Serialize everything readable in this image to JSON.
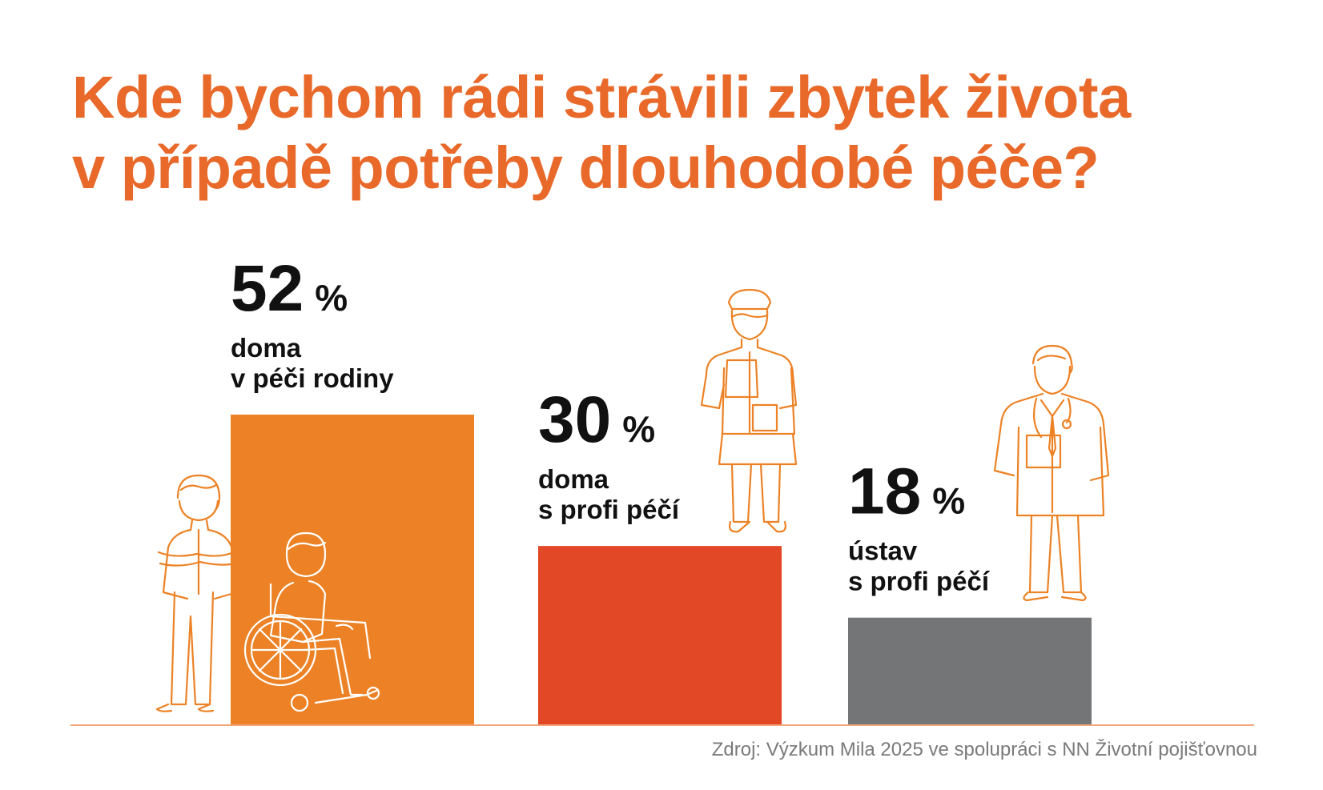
{
  "title_lines": [
    "Kde bychom rádi strávili zbytek života",
    "v případě potřeby dlouhodobé péče?"
  ],
  "source": "Zdroj: Výzkum Mila 2025 ve spolupráci s NN Životní pojišťovnou",
  "colors": {
    "title": "#E8692A",
    "bar_family": "#EC8225",
    "bar_home_pro": "#E24726",
    "bar_institution": "#747577",
    "baseline": "#F2A57A",
    "figure_line": "#EC8225",
    "text": "#111111",
    "source": "#7a7a7a"
  },
  "icons": [
    "caregiver-woman-icon",
    "wheelchair-person-icon",
    "nurse-icon",
    "doctor-icon"
  ],
  "chart_data": {
    "type": "bar",
    "title": "Kde bychom rádi strávili zbytek života v případě potřeby dlouhodobé péče?",
    "unit": "%",
    "categories": [
      "doma v péči rodiny",
      "doma s profi péčí",
      "ústav s profi péčí"
    ],
    "category_lines": [
      [
        "doma",
        "v péči rodiny"
      ],
      [
        "doma",
        "s profi péčí"
      ],
      [
        "ústav",
        "s profi péčí"
      ]
    ],
    "values": [
      52,
      30,
      18
    ],
    "value_labels": [
      "52",
      "30",
      "18"
    ],
    "percent_sign": "%",
    "colors": [
      "#EC8225",
      "#E24726",
      "#747577"
    ],
    "ylim": [
      0,
      52
    ],
    "grid": false,
    "legend": "none"
  }
}
